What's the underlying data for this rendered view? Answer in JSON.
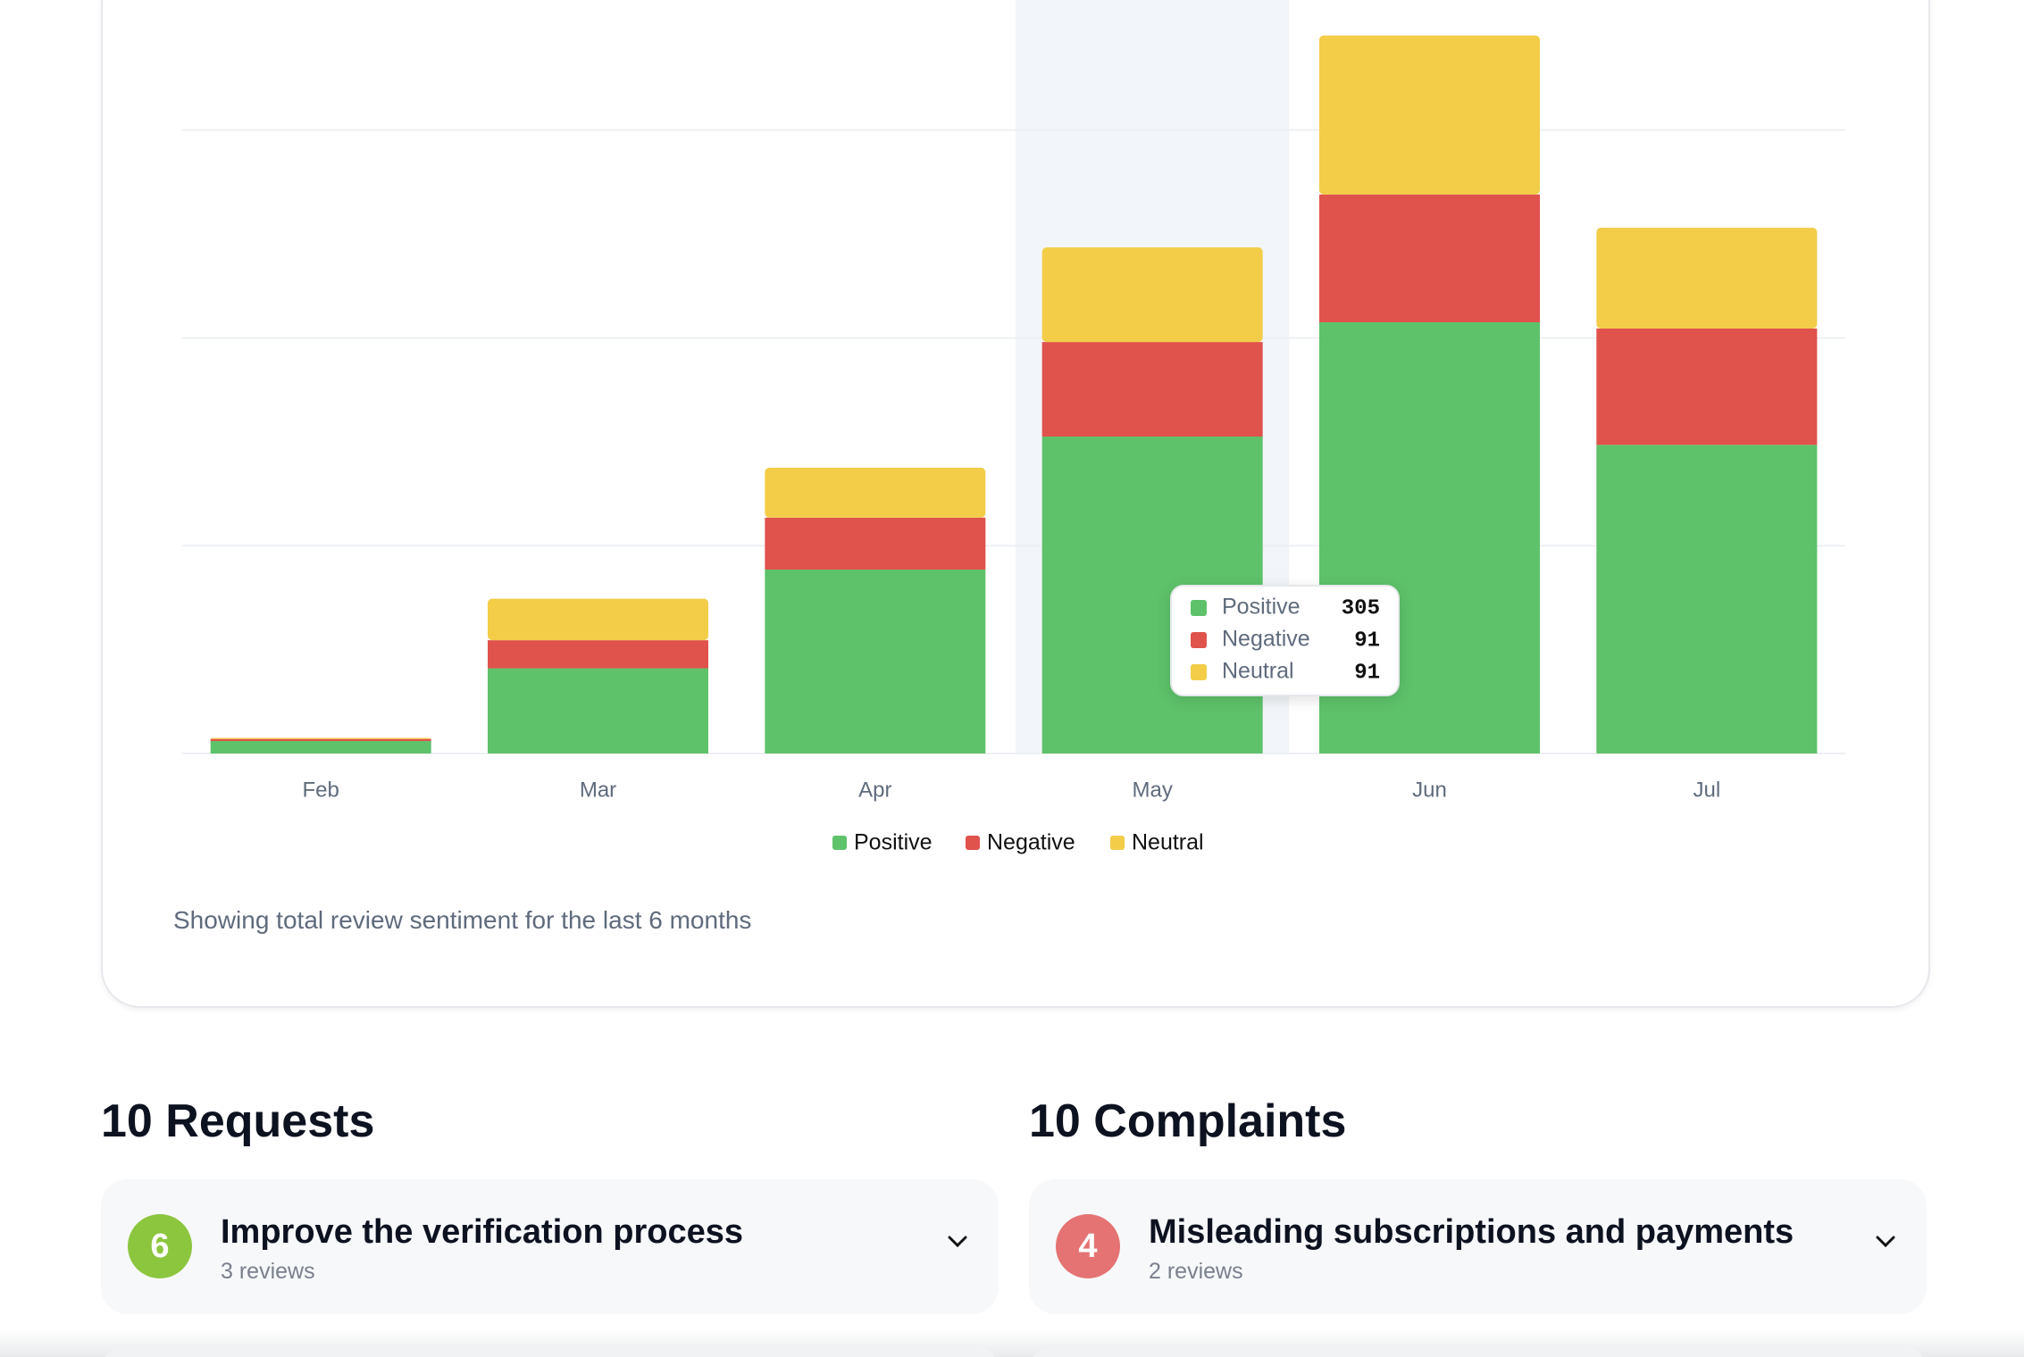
{
  "chart_data": {
    "type": "bar",
    "stacked": true,
    "categories": [
      "Feb",
      "Mar",
      "Apr",
      "May",
      "Jun",
      "Jul"
    ],
    "series": [
      {
        "name": "Positive",
        "color": "#5ec26a",
        "values": [
          12,
          82,
          177,
          305,
          415,
          297
        ]
      },
      {
        "name": "Negative",
        "color": "#e0524c",
        "values": [
          2,
          27,
          50,
          91,
          123,
          112
        ]
      },
      {
        "name": "Neutral",
        "color": "#f3cd48",
        "values": [
          1,
          40,
          48,
          91,
          153,
          97
        ]
      }
    ],
    "ylim": [
      0,
      720
    ],
    "yticks": [
      0,
      200,
      400,
      600
    ],
    "grid": true,
    "legend": "bottom",
    "subtitle": "Showing total review sentiment for the last 6 months"
  },
  "requests": {
    "title": "10 Requests",
    "items": [
      {
        "count": 6,
        "title": "Improve the verification process",
        "reviews": "3 reviews"
      }
    ]
  },
  "complaints": {
    "title": "10 Complaints",
    "items": [
      {
        "count": 4,
        "title": "Misleading subscriptions and payments",
        "reviews": "2 reviews"
      }
    ]
  }
}
